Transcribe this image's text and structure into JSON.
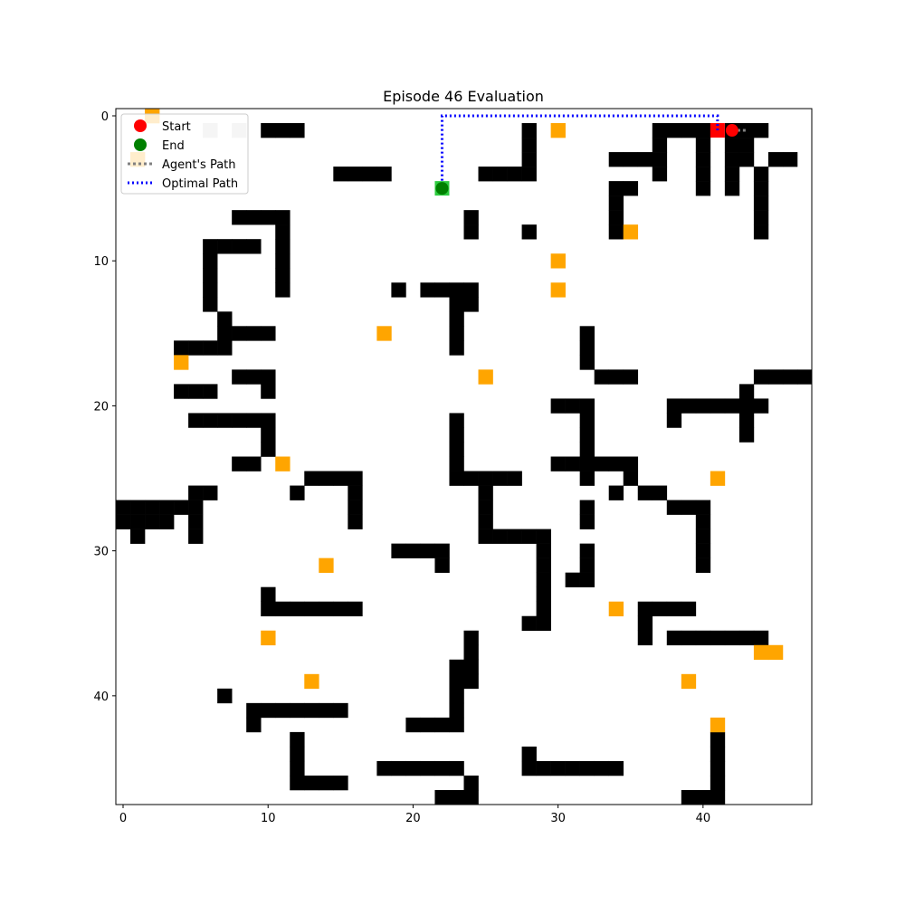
{
  "title": "Episode 46 Evaluation",
  "colors": {
    "wall": "#000000",
    "bonus": "#ffa500",
    "visited": "#cccccc",
    "start": "#ff0000",
    "end": "#008000",
    "end_cell": "#2ecc40",
    "optimal_path": "#0000ff",
    "agent_path": "#808080"
  },
  "chart_data": {
    "type": "grid",
    "grid_size": 48,
    "xlim": [
      0,
      47
    ],
    "ylim": [
      47,
      0
    ],
    "x_ticks": [
      0,
      10,
      20,
      30,
      40
    ],
    "y_ticks": [
      0,
      10,
      20,
      30,
      40
    ],
    "legend": {
      "placement": "top-left",
      "entries": [
        {
          "key": "start",
          "label": "Start"
        },
        {
          "key": "end",
          "label": "End"
        },
        {
          "key": "agent",
          "label": "Agent's Path"
        },
        {
          "key": "optimal",
          "label": "Optimal Path"
        }
      ]
    },
    "start": [
      42,
      1
    ],
    "end": [
      22,
      5
    ],
    "agent_position": [
      41,
      1
    ],
    "agent_path": [
      [
        42,
        1
      ],
      [
        43,
        1
      ]
    ],
    "optimal_path": [
      [
        41,
        1
      ],
      [
        41,
        0
      ],
      [
        22,
        0
      ],
      [
        22,
        5
      ]
    ],
    "walls": [
      [
        10,
        1
      ],
      [
        11,
        1
      ],
      [
        12,
        1
      ],
      [
        28,
        1
      ],
      [
        28,
        2
      ],
      [
        28,
        3
      ],
      [
        28,
        4
      ],
      [
        25,
        4
      ],
      [
        26,
        4
      ],
      [
        27,
        4
      ],
      [
        15,
        4
      ],
      [
        16,
        4
      ],
      [
        17,
        4
      ],
      [
        18,
        4
      ],
      [
        37,
        1
      ],
      [
        38,
        1
      ],
      [
        39,
        1
      ],
      [
        40,
        1
      ],
      [
        37,
        2
      ],
      [
        37,
        3
      ],
      [
        37,
        4
      ],
      [
        34,
        3
      ],
      [
        35,
        3
      ],
      [
        36,
        3
      ],
      [
        40,
        2
      ],
      [
        40,
        3
      ],
      [
        40,
        4
      ],
      [
        40,
        5
      ],
      [
        42,
        1
      ],
      [
        43,
        1
      ],
      [
        42,
        2
      ],
      [
        43,
        2
      ],
      [
        42,
        3
      ],
      [
        43,
        3
      ],
      [
        42,
        4
      ],
      [
        42,
        5
      ],
      [
        44,
        1
      ],
      [
        44,
        4
      ],
      [
        44,
        5
      ],
      [
        44,
        6
      ],
      [
        44,
        7
      ],
      [
        44,
        8
      ],
      [
        45,
        3
      ],
      [
        46,
        3
      ],
      [
        34,
        5
      ],
      [
        35,
        5
      ],
      [
        34,
        6
      ],
      [
        34,
        7
      ],
      [
        34,
        8
      ],
      [
        24,
        7
      ],
      [
        24,
        8
      ],
      [
        28,
        8
      ],
      [
        8,
        7
      ],
      [
        9,
        7
      ],
      [
        10,
        7
      ],
      [
        11,
        7
      ],
      [
        11,
        8
      ],
      [
        11,
        9
      ],
      [
        11,
        10
      ],
      [
        11,
        11
      ],
      [
        11,
        12
      ],
      [
        6,
        9
      ],
      [
        7,
        9
      ],
      [
        8,
        9
      ],
      [
        9,
        9
      ],
      [
        6,
        10
      ],
      [
        6,
        11
      ],
      [
        6,
        12
      ],
      [
        6,
        13
      ],
      [
        19,
        12
      ],
      [
        21,
        12
      ],
      [
        22,
        12
      ],
      [
        23,
        12
      ],
      [
        24,
        12
      ],
      [
        23,
        13
      ],
      [
        24,
        13
      ],
      [
        23,
        14
      ],
      [
        23,
        15
      ],
      [
        23,
        16
      ],
      [
        7,
        14
      ],
      [
        7,
        15
      ],
      [
        8,
        15
      ],
      [
        9,
        15
      ],
      [
        10,
        15
      ],
      [
        4,
        16
      ],
      [
        5,
        16
      ],
      [
        6,
        16
      ],
      [
        7,
        16
      ],
      [
        32,
        15
      ],
      [
        32,
        16
      ],
      [
        32,
        17
      ],
      [
        33,
        18
      ],
      [
        34,
        18
      ],
      [
        35,
        18
      ],
      [
        44,
        18
      ],
      [
        45,
        18
      ],
      [
        46,
        18
      ],
      [
        47,
        18
      ],
      [
        8,
        18
      ],
      [
        9,
        18
      ],
      [
        10,
        18
      ],
      [
        10,
        19
      ],
      [
        4,
        19
      ],
      [
        5,
        19
      ],
      [
        6,
        19
      ],
      [
        43,
        19
      ],
      [
        43,
        20
      ],
      [
        43,
        21
      ],
      [
        43,
        22
      ],
      [
        30,
        20
      ],
      [
        31,
        20
      ],
      [
        32,
        20
      ],
      [
        38,
        20
      ],
      [
        39,
        20
      ],
      [
        40,
        20
      ],
      [
        41,
        20
      ],
      [
        42,
        20
      ],
      [
        44,
        20
      ],
      [
        38,
        21
      ],
      [
        5,
        21
      ],
      [
        6,
        21
      ],
      [
        7,
        21
      ],
      [
        8,
        21
      ],
      [
        9,
        21
      ],
      [
        10,
        21
      ],
      [
        10,
        22
      ],
      [
        10,
        23
      ],
      [
        23,
        21
      ],
      [
        23,
        22
      ],
      [
        23,
        23
      ],
      [
        23,
        24
      ],
      [
        32,
        21
      ],
      [
        32,
        22
      ],
      [
        32,
        23
      ],
      [
        8,
        24
      ],
      [
        9,
        24
      ],
      [
        30,
        24
      ],
      [
        31,
        24
      ],
      [
        32,
        24
      ],
      [
        33,
        24
      ],
      [
        34,
        24
      ],
      [
        35,
        24
      ],
      [
        32,
        25
      ],
      [
        35,
        25
      ],
      [
        13,
        25
      ],
      [
        14,
        25
      ],
      [
        15,
        25
      ],
      [
        16,
        25
      ],
      [
        16,
        26
      ],
      [
        16,
        27
      ],
      [
        16,
        28
      ],
      [
        23,
        25
      ],
      [
        24,
        25
      ],
      [
        25,
        25
      ],
      [
        26,
        25
      ],
      [
        27,
        25
      ],
      [
        25,
        26
      ],
      [
        25,
        27
      ],
      [
        25,
        28
      ],
      [
        25,
        29
      ],
      [
        26,
        29
      ],
      [
        27,
        29
      ],
      [
        28,
        29
      ],
      [
        29,
        29
      ],
      [
        29,
        30
      ],
      [
        29,
        31
      ],
      [
        29,
        32
      ],
      [
        29,
        33
      ],
      [
        29,
        34
      ],
      [
        28,
        35
      ],
      [
        29,
        35
      ],
      [
        5,
        26
      ],
      [
        6,
        26
      ],
      [
        12,
        26
      ],
      [
        34,
        26
      ],
      [
        36,
        26
      ],
      [
        37,
        26
      ],
      [
        32,
        27
      ],
      [
        32,
        28
      ],
      [
        38,
        27
      ],
      [
        39,
        27
      ],
      [
        40,
        27
      ],
      [
        40,
        28
      ],
      [
        40,
        29
      ],
      [
        40,
        30
      ],
      [
        40,
        31
      ],
      [
        0,
        27
      ],
      [
        1,
        27
      ],
      [
        2,
        27
      ],
      [
        3,
        27
      ],
      [
        4,
        27
      ],
      [
        5,
        27
      ],
      [
        0,
        28
      ],
      [
        1,
        28
      ],
      [
        2,
        28
      ],
      [
        3,
        28
      ],
      [
        5,
        28
      ],
      [
        1,
        29
      ],
      [
        5,
        29
      ],
      [
        19,
        30
      ],
      [
        20,
        30
      ],
      [
        21,
        30
      ],
      [
        22,
        30
      ],
      [
        22,
        31
      ],
      [
        32,
        30
      ],
      [
        32,
        31
      ],
      [
        31,
        32
      ],
      [
        32,
        32
      ],
      [
        10,
        33
      ],
      [
        10,
        34
      ],
      [
        11,
        34
      ],
      [
        12,
        34
      ],
      [
        13,
        34
      ],
      [
        14,
        34
      ],
      [
        15,
        34
      ],
      [
        16,
        34
      ],
      [
        36,
        34
      ],
      [
        37,
        34
      ],
      [
        38,
        34
      ],
      [
        39,
        34
      ],
      [
        36,
        35
      ],
      [
        36,
        36
      ],
      [
        38,
        36
      ],
      [
        39,
        36
      ],
      [
        40,
        36
      ],
      [
        41,
        36
      ],
      [
        42,
        36
      ],
      [
        43,
        36
      ],
      [
        44,
        36
      ],
      [
        24,
        36
      ],
      [
        24,
        37
      ],
      [
        23,
        38
      ],
      [
        24,
        38
      ],
      [
        23,
        39
      ],
      [
        24,
        39
      ],
      [
        23,
        40
      ],
      [
        23,
        41
      ],
      [
        20,
        42
      ],
      [
        21,
        42
      ],
      [
        22,
        42
      ],
      [
        23,
        42
      ],
      [
        7,
        40
      ],
      [
        9,
        41
      ],
      [
        10,
        41
      ],
      [
        11,
        41
      ],
      [
        12,
        41
      ],
      [
        13,
        41
      ],
      [
        14,
        41
      ],
      [
        15,
        41
      ],
      [
        9,
        42
      ],
      [
        41,
        43
      ],
      [
        41,
        44
      ],
      [
        41,
        45
      ],
      [
        41,
        46
      ],
      [
        41,
        47
      ],
      [
        39,
        47
      ],
      [
        40,
        47
      ],
      [
        12,
        43
      ],
      [
        12,
        44
      ],
      [
        12,
        45
      ],
      [
        13,
        46
      ],
      [
        14,
        46
      ],
      [
        15,
        46
      ],
      [
        12,
        46
      ],
      [
        28,
        44
      ],
      [
        28,
        45
      ],
      [
        29,
        45
      ],
      [
        30,
        45
      ],
      [
        31,
        45
      ],
      [
        32,
        45
      ],
      [
        33,
        45
      ],
      [
        34,
        45
      ],
      [
        18,
        45
      ],
      [
        19,
        45
      ],
      [
        20,
        45
      ],
      [
        21,
        45
      ],
      [
        22,
        45
      ],
      [
        23,
        45
      ],
      [
        24,
        46
      ],
      [
        22,
        47
      ],
      [
        23,
        47
      ],
      [
        24,
        47
      ]
    ],
    "bonus": [
      [
        2,
        0
      ],
      [
        1,
        3
      ],
      [
        30,
        1
      ],
      [
        35,
        8
      ],
      [
        30,
        10
      ],
      [
        30,
        12
      ],
      [
        18,
        15
      ],
      [
        4,
        17
      ],
      [
        25,
        18
      ],
      [
        11,
        24
      ],
      [
        41,
        25
      ],
      [
        14,
        31
      ],
      [
        34,
        34
      ],
      [
        10,
        36
      ],
      [
        44,
        37
      ],
      [
        45,
        37
      ],
      [
        13,
        39
      ],
      [
        39,
        39
      ],
      [
        41,
        42
      ]
    ],
    "visited": [
      [
        6,
        1
      ],
      [
        8,
        1
      ]
    ]
  }
}
